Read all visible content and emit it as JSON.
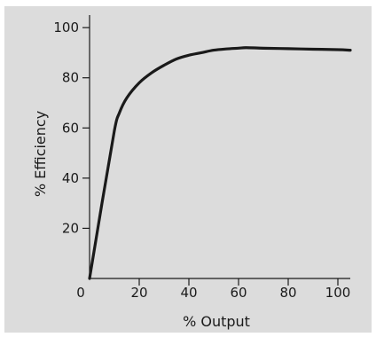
{
  "chart_data": {
    "type": "line",
    "title": "",
    "xlabel": "% Output",
    "ylabel": "% Efficiency",
    "xlim": [
      0,
      105
    ],
    "ylim": [
      0,
      105
    ],
    "x_ticks": [
      0,
      20,
      40,
      60,
      80,
      100
    ],
    "y_ticks": [
      20,
      40,
      60,
      80,
      100
    ],
    "x_tick_labels": [
      "0",
      "20",
      "40",
      "60",
      "80",
      "100"
    ],
    "y_tick_labels": [
      "20",
      "40",
      "60",
      "80",
      "100"
    ],
    "grid": false,
    "legend": "none",
    "line_color": "#1a1a1a",
    "background_color": "#dcdcdc",
    "series": [
      {
        "x": [
          0,
          5,
          10,
          12,
          15,
          20,
          25,
          30,
          35,
          40,
          45,
          50,
          55,
          60,
          63,
          70,
          80,
          90,
          100,
          105
        ],
        "y": [
          0,
          30,
          59,
          66,
          72,
          78,
          82,
          85,
          87.5,
          89,
          90,
          91,
          91.5,
          91.8,
          92,
          91.8,
          91.6,
          91.4,
          91.2,
          91
        ]
      }
    ]
  }
}
